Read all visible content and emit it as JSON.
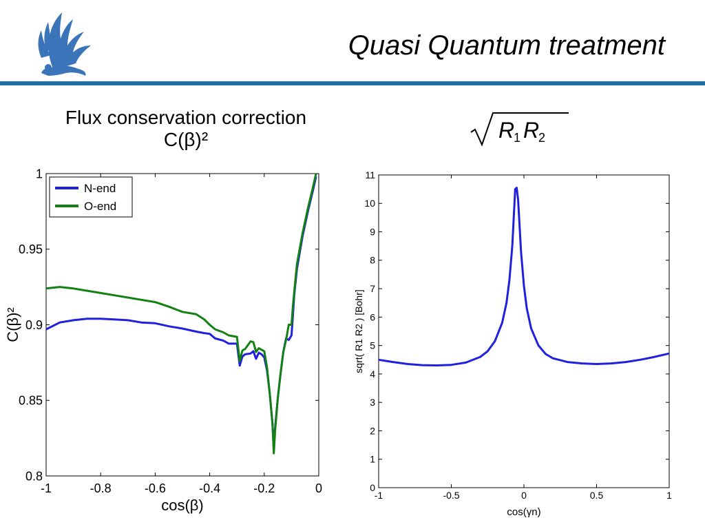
{
  "slide": {
    "title": "Quasi Quantum treatment",
    "left_heading_line1": "Flux conservation correction",
    "left_heading_line2": "C(β)²",
    "accent_color": "#1f6fa6",
    "logo_icon": "griffin-logo-icon"
  },
  "formula": {
    "text": "√(R₁R₂)",
    "latex": "\\sqrt{R_1R_2}",
    "icon": "sqrt-r1r2-formula-icon"
  },
  "chart_data": [
    {
      "type": "line",
      "title": "",
      "xlabel": "cos(β)",
      "ylabel": "C(β)²",
      "xlim": [
        -1,
        0
      ],
      "ylim": [
        0.8,
        1
      ],
      "xticks": [
        -1,
        -0.8,
        -0.6,
        -0.4,
        -0.2,
        0
      ],
      "xtick_labels": [
        "-1",
        "-0.8",
        "-0.6",
        "-0.4",
        "-0.2",
        "0"
      ],
      "yticks": [
        0.8,
        0.85,
        0.9,
        0.95,
        1
      ],
      "ytick_labels": [
        "0.8",
        "0.85",
        "0.9",
        "0.95",
        "1"
      ],
      "grid": false,
      "legend": "top-left",
      "series": [
        {
          "name": "N-end",
          "color": "#1f1fe0",
          "x": [
            -1,
            -0.95,
            -0.9,
            -0.85,
            -0.8,
            -0.75,
            -0.7,
            -0.65,
            -0.6,
            -0.55,
            -0.5,
            -0.45,
            -0.42,
            -0.4,
            -0.38,
            -0.35,
            -0.33,
            -0.3,
            -0.29,
            -0.28,
            -0.27,
            -0.25,
            -0.24,
            -0.23,
            -0.22,
            -0.21,
            -0.2,
            -0.19,
            -0.18,
            -0.17,
            -0.165,
            -0.16,
            -0.15,
            -0.14,
            -0.13,
            -0.12,
            -0.11,
            -0.1,
            -0.095,
            -0.09,
            -0.08,
            -0.06,
            -0.04,
            -0.02,
            -0.01
          ],
          "y": [
            0.897,
            0.9015,
            0.903,
            0.904,
            0.904,
            0.9035,
            0.903,
            0.9015,
            0.901,
            0.899,
            0.8975,
            0.8955,
            0.8945,
            0.894,
            0.891,
            0.8895,
            0.8875,
            0.8875,
            0.873,
            0.879,
            0.8805,
            0.881,
            0.8825,
            0.8775,
            0.8815,
            0.8805,
            0.8785,
            0.87,
            0.855,
            0.835,
            0.817,
            0.832,
            0.852,
            0.868,
            0.882,
            0.891,
            0.89,
            0.893,
            0.906,
            0.92,
            0.937,
            0.958,
            0.975,
            0.99,
            0.998
          ]
        },
        {
          "name": "O-end",
          "color": "#128012",
          "x": [
            -1,
            -0.95,
            -0.9,
            -0.85,
            -0.8,
            -0.75,
            -0.7,
            -0.65,
            -0.6,
            -0.55,
            -0.5,
            -0.45,
            -0.42,
            -0.4,
            -0.38,
            -0.35,
            -0.33,
            -0.3,
            -0.29,
            -0.28,
            -0.27,
            -0.25,
            -0.24,
            -0.23,
            -0.22,
            -0.21,
            -0.2,
            -0.19,
            -0.18,
            -0.17,
            -0.165,
            -0.16,
            -0.15,
            -0.14,
            -0.13,
            -0.12,
            -0.11,
            -0.1,
            -0.095,
            -0.09,
            -0.08,
            -0.06,
            -0.04,
            -0.02,
            -0.01
          ],
          "y": [
            0.924,
            0.925,
            0.924,
            0.9225,
            0.921,
            0.9195,
            0.918,
            0.9165,
            0.915,
            0.912,
            0.9085,
            0.907,
            0.9035,
            0.9,
            0.897,
            0.895,
            0.893,
            0.892,
            0.876,
            0.883,
            0.884,
            0.889,
            0.8885,
            0.882,
            0.8845,
            0.8835,
            0.8825,
            0.872,
            0.855,
            0.835,
            0.815,
            0.83,
            0.852,
            0.868,
            0.882,
            0.89,
            0.9,
            0.9,
            0.912,
            0.922,
            0.94,
            0.96,
            0.977,
            0.992,
            1.0
          ]
        }
      ]
    },
    {
      "type": "line",
      "title": "",
      "xlabel": "cos(γn)",
      "ylabel": "sqrt( R1 R2 ) [Bohr]",
      "xlim": [
        -1,
        1
      ],
      "ylim": [
        0,
        11
      ],
      "xticks": [
        -1,
        -0.5,
        0,
        0.5,
        1
      ],
      "xtick_labels": [
        "-1",
        "-0.5",
        "0",
        "0.5",
        "1"
      ],
      "yticks": [
        0,
        1,
        2,
        3,
        4,
        5,
        6,
        7,
        8,
        9,
        10,
        11
      ],
      "ytick_labels": [
        "0",
        "1",
        "2",
        "3",
        "4",
        "5",
        "6",
        "7",
        "8",
        "9",
        "10",
        "11"
      ],
      "grid": false,
      "legend": "none",
      "series": [
        {
          "color": "#1f1fe0",
          "x": [
            -1,
            -0.9,
            -0.8,
            -0.7,
            -0.6,
            -0.5,
            -0.4,
            -0.3,
            -0.25,
            -0.2,
            -0.15,
            -0.12,
            -0.1,
            -0.08,
            -0.06,
            -0.05,
            -0.04,
            -0.02,
            0,
            0.02,
            0.05,
            0.1,
            0.15,
            0.2,
            0.3,
            0.4,
            0.5,
            0.6,
            0.7,
            0.8,
            0.9,
            1
          ],
          "y": [
            4.5,
            4.42,
            4.35,
            4.31,
            4.3,
            4.32,
            4.4,
            4.6,
            4.8,
            5.15,
            5.8,
            6.5,
            7.3,
            8.5,
            10.5,
            10.55,
            10.1,
            8.3,
            7.1,
            6.3,
            5.6,
            5.0,
            4.7,
            4.55,
            4.42,
            4.37,
            4.35,
            4.37,
            4.42,
            4.5,
            4.6,
            4.72
          ]
        }
      ]
    }
  ]
}
